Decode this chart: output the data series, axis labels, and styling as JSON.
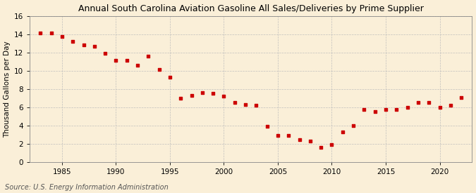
{
  "title": "Annual South Carolina Aviation Gasoline All Sales/Deliveries by Prime Supplier",
  "ylabel": "Thousand Gallons per Day",
  "source": "Source: U.S. Energy Information Administration",
  "background_color": "#faefd8",
  "marker_color": "#cc0000",
  "grid_color": "#bbbbbb",
  "ylim": [
    0,
    16
  ],
  "yticks": [
    0,
    2,
    4,
    6,
    8,
    10,
    12,
    14,
    16
  ],
  "xticks": [
    1985,
    1990,
    1995,
    2000,
    2005,
    2010,
    2015,
    2020
  ],
  "xlim": [
    1982,
    2023
  ],
  "years": [
    1983,
    1984,
    1985,
    1986,
    1987,
    1988,
    1989,
    1990,
    1991,
    1992,
    1993,
    1994,
    1995,
    1996,
    1997,
    1998,
    1999,
    2000,
    2001,
    2002,
    2003,
    2004,
    2005,
    2006,
    2007,
    2008,
    2009,
    2010,
    2011,
    2012,
    2013,
    2014,
    2015,
    2016,
    2017,
    2018,
    2019,
    2020,
    2021,
    2022
  ],
  "values": [
    14.1,
    14.1,
    13.7,
    13.2,
    12.8,
    12.7,
    11.9,
    11.1,
    11.1,
    10.6,
    11.6,
    10.1,
    9.3,
    7.0,
    7.3,
    7.6,
    7.5,
    7.2,
    6.5,
    6.3,
    6.2,
    3.9,
    2.9,
    2.9,
    2.5,
    2.3,
    1.6,
    1.9,
    3.3,
    4.0,
    5.8,
    5.5,
    5.8,
    5.8,
    6.0,
    6.5,
    6.5,
    6.0,
    6.2,
    7.1
  ],
  "title_fontsize": 9,
  "ylabel_fontsize": 7.5,
  "tick_fontsize": 7.5,
  "source_fontsize": 7
}
